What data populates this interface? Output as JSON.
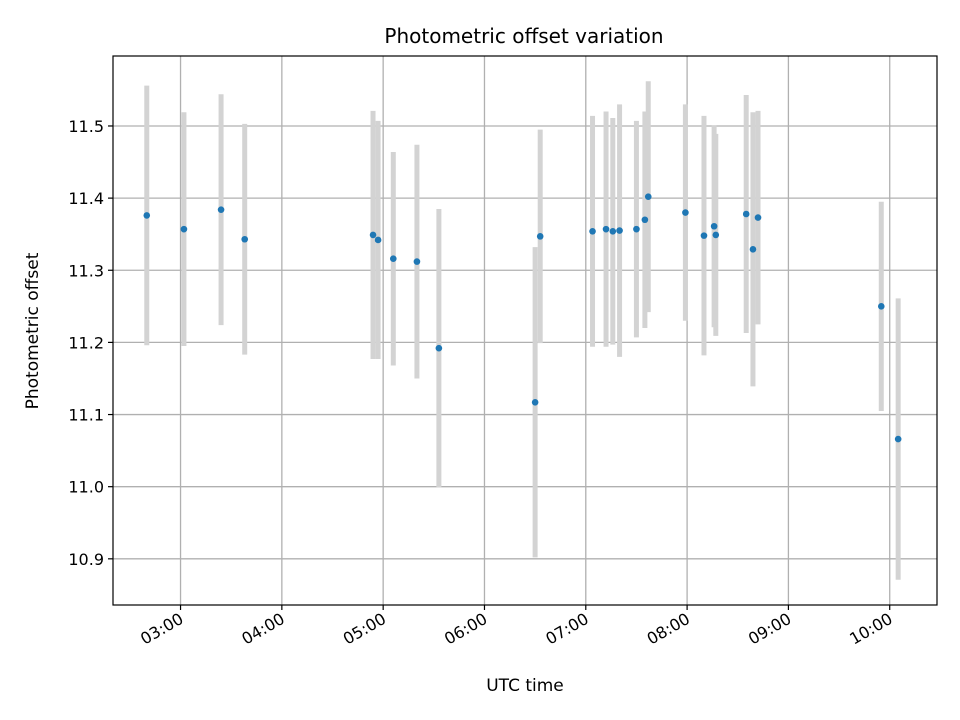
{
  "chart_data": {
    "type": "scatter",
    "title": "Photometric offset variation",
    "xlabel": "UTC time",
    "ylabel": "Photometric offset",
    "xlim": [
      "02:20",
      "10:28"
    ],
    "ylim": [
      10.836,
      11.597
    ],
    "x_ticks": [
      "03:00",
      "04:00",
      "05:00",
      "06:00",
      "07:00",
      "08:00",
      "09:00",
      "10:00"
    ],
    "y_ticks": [
      10.9,
      11.0,
      11.1,
      11.2,
      11.3,
      11.4,
      11.5
    ],
    "grid": true,
    "marker_color": "#1f77b4",
    "errorbar_color": "#d3d3d3",
    "points": [
      {
        "t": "02:40",
        "y": 11.376,
        "err": 0.18
      },
      {
        "t": "03:02",
        "y": 11.357,
        "err": 0.162
      },
      {
        "t": "03:24",
        "y": 11.384,
        "err": 0.16
      },
      {
        "t": "03:38",
        "y": 11.343,
        "err": 0.16
      },
      {
        "t": "04:54",
        "y": 11.349,
        "err": 0.172
      },
      {
        "t": "04:57",
        "y": 11.342,
        "err": 0.165
      },
      {
        "t": "05:06",
        "y": 11.316,
        "err": 0.148
      },
      {
        "t": "05:20",
        "y": 11.312,
        "err": 0.162
      },
      {
        "t": "05:33",
        "y": 11.192,
        "err": 0.193
      },
      {
        "t": "06:30",
        "y": 11.117,
        "err": 0.215
      },
      {
        "t": "06:33",
        "y": 11.347,
        "err": 0.148
      },
      {
        "t": "07:04",
        "y": 11.354,
        "err": 0.16
      },
      {
        "t": "07:12",
        "y": 11.357,
        "err": 0.163
      },
      {
        "t": "07:16",
        "y": 11.354,
        "err": 0.157
      },
      {
        "t": "07:20",
        "y": 11.355,
        "err": 0.175
      },
      {
        "t": "07:30",
        "y": 11.357,
        "err": 0.15
      },
      {
        "t": "07:35",
        "y": 11.37,
        "err": 0.15
      },
      {
        "t": "07:37",
        "y": 11.402,
        "err": 0.16
      },
      {
        "t": "07:59",
        "y": 11.38,
        "err": 0.15
      },
      {
        "t": "08:10",
        "y": 11.348,
        "err": 0.166
      },
      {
        "t": "08:16",
        "y": 11.361,
        "err": 0.14
      },
      {
        "t": "08:17",
        "y": 11.349,
        "err": 0.14
      },
      {
        "t": "08:35",
        "y": 11.378,
        "err": 0.165
      },
      {
        "t": "08:39",
        "y": 11.329,
        "err": 0.19
      },
      {
        "t": "08:42",
        "y": 11.373,
        "err": 0.148
      },
      {
        "t": "09:55",
        "y": 11.25,
        "err": 0.145
      },
      {
        "t": "10:05",
        "y": 11.066,
        "err": 0.195
      }
    ]
  }
}
